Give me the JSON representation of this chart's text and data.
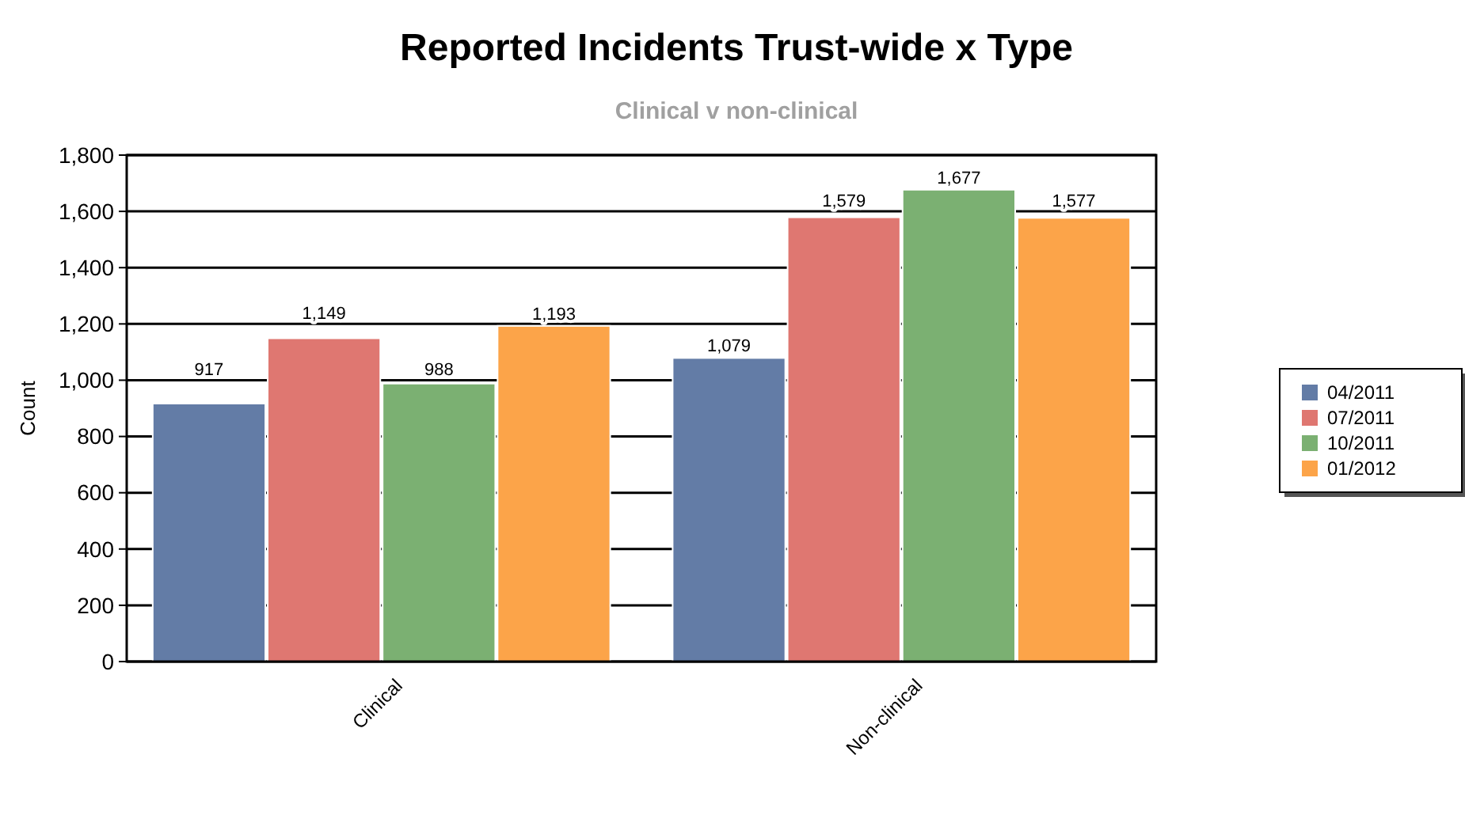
{
  "chart_data": {
    "type": "bar",
    "title": "Reported Incidents Trust-wide x Type",
    "subtitle": "Clinical v non-clinical",
    "ylabel": "Count",
    "categories": [
      "Clinical",
      "Non-clinical"
    ],
    "series": [
      {
        "name": "04/2011",
        "color": "#637ca6",
        "values": [
          917,
          1079
        ],
        "value_labels": [
          "917",
          "1,079"
        ]
      },
      {
        "name": "07/2011",
        "color": "#df7771",
        "values": [
          1149,
          1579
        ],
        "value_labels": [
          "1,149",
          "1,579"
        ]
      },
      {
        "name": "10/2011",
        "color": "#7bb072",
        "values": [
          988,
          1677
        ],
        "value_labels": [
          "988",
          "1,677"
        ]
      },
      {
        "name": "01/2012",
        "color": "#fca449",
        "values": [
          1193,
          1577
        ],
        "value_labels": [
          "1,193",
          "1,577"
        ]
      }
    ],
    "ylim": [
      0,
      1800
    ],
    "yticks": [
      0,
      {
        "value": 200,
        "label": "200"
      },
      {
        "value": 400,
        "label": "400"
      },
      {
        "value": 600,
        "label": "600"
      },
      {
        "value": 800,
        "label": "800"
      },
      {
        "value": 1000,
        "label": "1,000"
      },
      {
        "value": 1200,
        "label": "1,200"
      },
      {
        "value": 1400,
        "label": "1,400"
      },
      {
        "value": 1600,
        "label": "1,600"
      },
      {
        "value": 1800,
        "label": "1,800"
      }
    ],
    "grid": "y",
    "legend": "right"
  }
}
